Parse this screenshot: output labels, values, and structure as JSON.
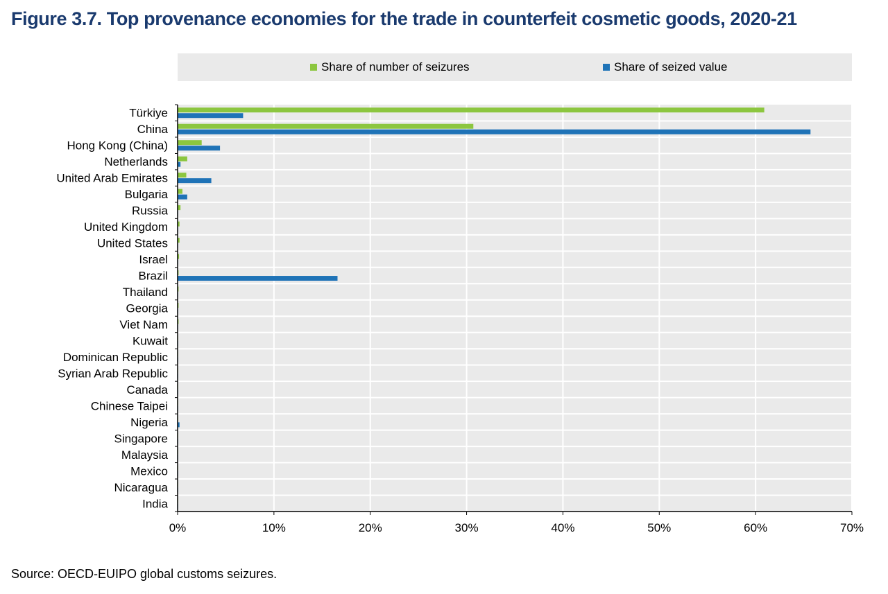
{
  "title": "Figure 3.7. Top provenance economies for the trade in counterfeit cosmetic goods, 2020-21",
  "source": "Source: OECD-EUIPO global customs seizures.",
  "colors": {
    "seizures": "#8cc63f",
    "value": "#1f73b7",
    "plot_bg": "#eaeaea",
    "title": "#1a3a6e"
  },
  "chart_data": {
    "type": "bar",
    "orientation": "horizontal",
    "title": "Figure 3.7. Top provenance economies for the trade in counterfeit cosmetic goods, 2020-21",
    "xlabel": "",
    "ylabel": "",
    "xlim": [
      0,
      70
    ],
    "x_ticks": [
      "0%",
      "10%",
      "20%",
      "30%",
      "40%",
      "50%",
      "60%",
      "70%"
    ],
    "legend_position": "top",
    "grid": true,
    "categories": [
      "Türkiye",
      "China",
      "Hong Kong (China)",
      "Netherlands",
      "United Arab Emirates",
      "Bulgaria",
      "Russia",
      "United Kingdom",
      "United States",
      "Israel",
      "Brazil",
      "Thailand",
      "Georgia",
      "Viet Nam",
      "Kuwait",
      "Dominican Republic",
      "Syrian Arab Republic",
      "Canada",
      "Chinese Taipei",
      "Nigeria",
      "Singapore",
      "Malaysia",
      "Mexico",
      "Nicaragua",
      "India"
    ],
    "series": [
      {
        "name": "Share of number of seizures",
        "color": "#8cc63f",
        "values": [
          60.9,
          30.7,
          2.5,
          1.0,
          0.9,
          0.5,
          0.3,
          0.2,
          0.2,
          0.15,
          0.1,
          0.1,
          0.1,
          0.1,
          0.05,
          0.05,
          0.05,
          0.05,
          0.05,
          0.05,
          0.05,
          0.05,
          0.05,
          0.05,
          0.05
        ]
      },
      {
        "name": "Share of seized value",
        "color": "#1f73b7",
        "values": [
          6.8,
          65.7,
          4.4,
          0.3,
          3.5,
          1.0,
          0.05,
          0.05,
          0.05,
          0.05,
          16.6,
          0.05,
          0.05,
          0.05,
          0.05,
          0.05,
          0.05,
          0.05,
          0.05,
          0.2,
          0.05,
          0.05,
          0.05,
          0.05,
          0.05
        ]
      }
    ]
  }
}
